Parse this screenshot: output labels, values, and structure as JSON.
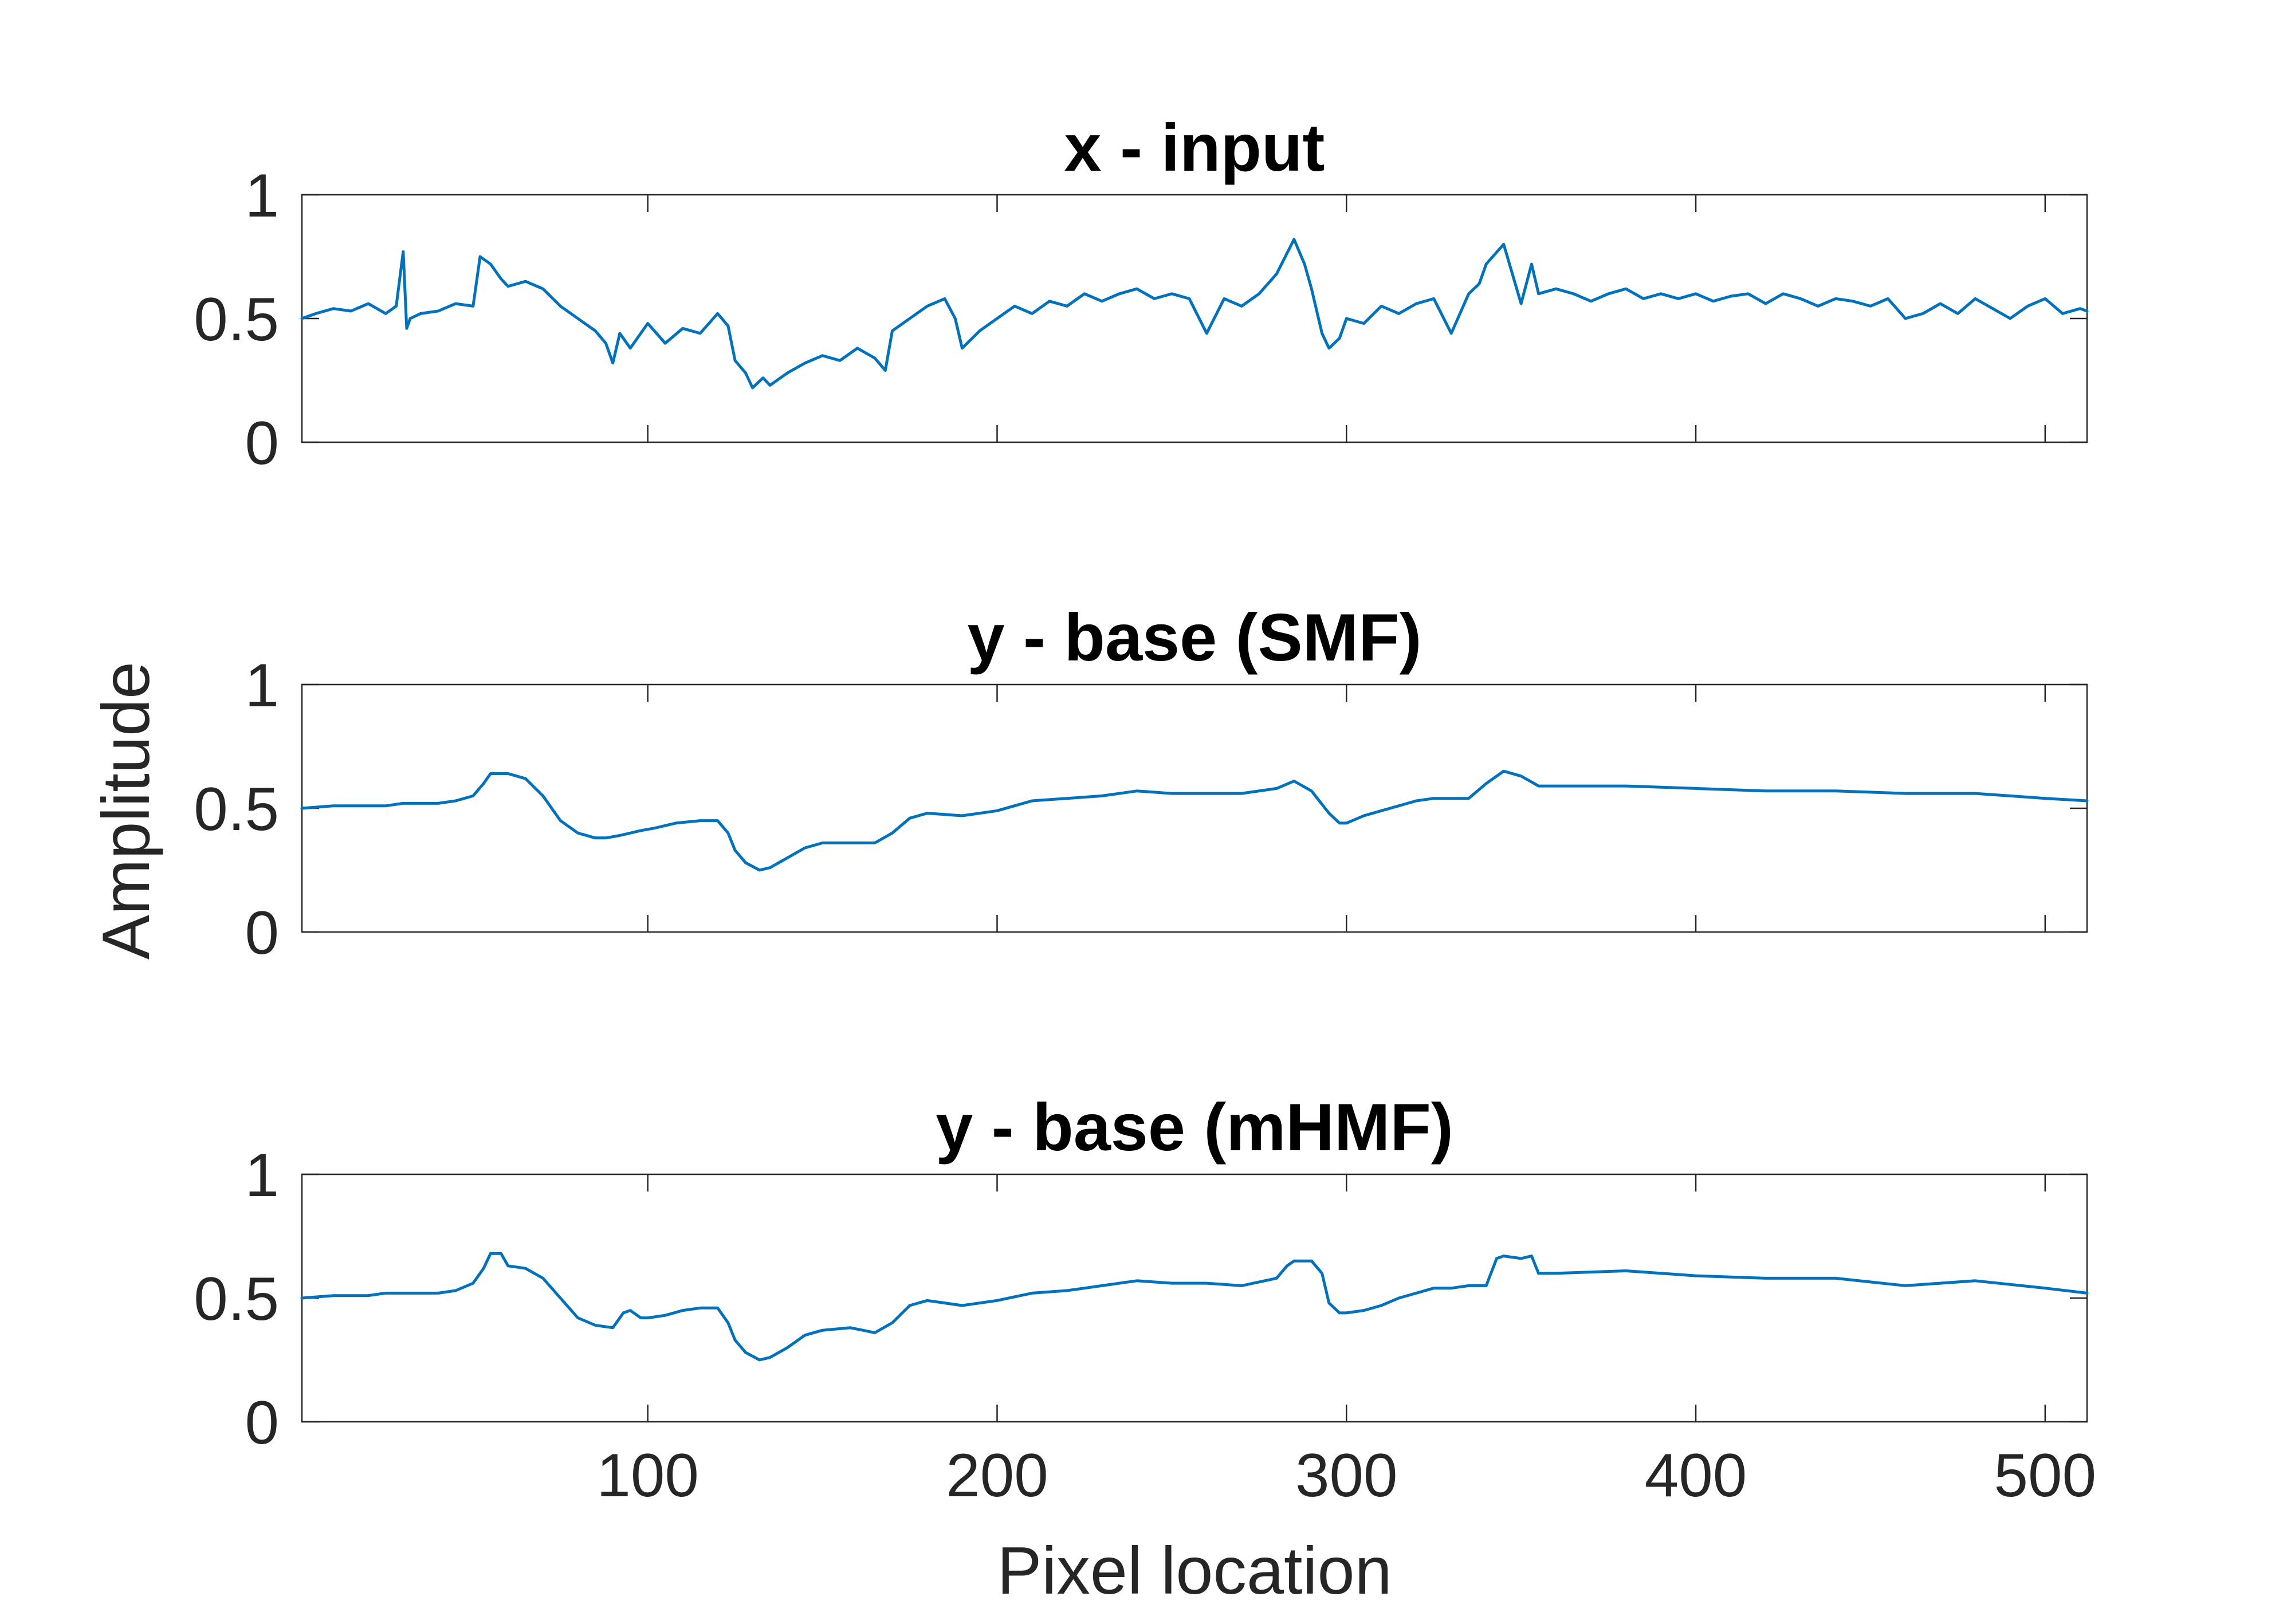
{
  "chart_data": [
    {
      "type": "line",
      "title": "x - input",
      "xlim": [
        1,
        512
      ],
      "ylim": [
        0,
        1
      ],
      "yticks": [
        "0",
        "0.5",
        "1"
      ],
      "xticks": [],
      "series": [
        {
          "color": "#0072BD",
          "x": [
            1,
            5,
            10,
            15,
            20,
            25,
            28,
            30,
            31,
            32,
            35,
            40,
            45,
            50,
            52,
            55,
            58,
            60,
            65,
            70,
            75,
            80,
            85,
            88,
            90,
            92,
            95,
            100,
            105,
            110,
            115,
            120,
            123,
            125,
            128,
            130,
            133,
            135,
            140,
            145,
            150,
            155,
            160,
            165,
            168,
            170,
            175,
            180,
            185,
            188,
            190,
            195,
            200,
            205,
            210,
            215,
            220,
            225,
            230,
            235,
            240,
            245,
            250,
            255,
            260,
            265,
            270,
            275,
            280,
            285,
            288,
            290,
            293,
            295,
            298,
            300,
            305,
            310,
            315,
            320,
            325,
            330,
            335,
            338,
            340,
            345,
            350,
            353,
            355,
            360,
            365,
            370,
            375,
            380,
            385,
            390,
            395,
            400,
            405,
            410,
            415,
            420,
            425,
            430,
            435,
            440,
            445,
            450,
            455,
            460,
            465,
            470,
            475,
            480,
            485,
            490,
            495,
            500,
            505,
            510,
            512
          ],
          "y": [
            0.5,
            0.52,
            0.54,
            0.53,
            0.56,
            0.52,
            0.55,
            0.77,
            0.46,
            0.5,
            0.52,
            0.53,
            0.56,
            0.55,
            0.75,
            0.72,
            0.66,
            0.63,
            0.65,
            0.62,
            0.55,
            0.5,
            0.45,
            0.4,
            0.32,
            0.44,
            0.38,
            0.48,
            0.4,
            0.46,
            0.44,
            0.52,
            0.47,
            0.33,
            0.28,
            0.22,
            0.26,
            0.23,
            0.28,
            0.32,
            0.35,
            0.33,
            0.38,
            0.34,
            0.29,
            0.45,
            0.5,
            0.55,
            0.58,
            0.5,
            0.38,
            0.45,
            0.5,
            0.55,
            0.52,
            0.57,
            0.55,
            0.6,
            0.57,
            0.6,
            0.62,
            0.58,
            0.6,
            0.58,
            0.44,
            0.58,
            0.55,
            0.6,
            0.68,
            0.82,
            0.72,
            0.62,
            0.44,
            0.38,
            0.42,
            0.5,
            0.48,
            0.55,
            0.52,
            0.56,
            0.58,
            0.44,
            0.6,
            0.64,
            0.72,
            0.8,
            0.56,
            0.72,
            0.6,
            0.62,
            0.6,
            0.57,
            0.6,
            0.62,
            0.58,
            0.6,
            0.58,
            0.6,
            0.57,
            0.59,
            0.6,
            0.56,
            0.6,
            0.58,
            0.55,
            0.58,
            0.57,
            0.55,
            0.58,
            0.5,
            0.52,
            0.56,
            0.52,
            0.58,
            0.54,
            0.5,
            0.55,
            0.58,
            0.52,
            0.54,
            0.53
          ]
        }
      ]
    },
    {
      "type": "line",
      "title": "y - base (SMF)",
      "xlim": [
        1,
        512
      ],
      "ylim": [
        0,
        1
      ],
      "yticks": [
        "0",
        "0.5",
        "1"
      ],
      "xticks": [],
      "series": [
        {
          "color": "#0072BD",
          "x": [
            1,
            10,
            20,
            25,
            30,
            40,
            45,
            50,
            53,
            55,
            60,
            65,
            70,
            75,
            80,
            85,
            88,
            92,
            98,
            102,
            108,
            115,
            120,
            123,
            125,
            128,
            132,
            135,
            140,
            145,
            150,
            158,
            165,
            170,
            175,
            180,
            190,
            200,
            210,
            220,
            230,
            240,
            250,
            260,
            270,
            280,
            285,
            290,
            295,
            298,
            300,
            305,
            310,
            315,
            320,
            325,
            330,
            335,
            340,
            345,
            350,
            355,
            360,
            380,
            400,
            420,
            440,
            460,
            480,
            500,
            512
          ],
          "y": [
            0.5,
            0.51,
            0.51,
            0.51,
            0.52,
            0.52,
            0.53,
            0.55,
            0.6,
            0.64,
            0.64,
            0.62,
            0.55,
            0.45,
            0.4,
            0.38,
            0.38,
            0.39,
            0.41,
            0.42,
            0.44,
            0.45,
            0.45,
            0.4,
            0.33,
            0.28,
            0.25,
            0.26,
            0.3,
            0.34,
            0.36,
            0.36,
            0.36,
            0.4,
            0.46,
            0.48,
            0.47,
            0.49,
            0.53,
            0.54,
            0.55,
            0.57,
            0.56,
            0.56,
            0.56,
            0.58,
            0.61,
            0.57,
            0.48,
            0.44,
            0.44,
            0.47,
            0.49,
            0.51,
            0.53,
            0.54,
            0.54,
            0.54,
            0.6,
            0.65,
            0.63,
            0.59,
            0.59,
            0.59,
            0.58,
            0.57,
            0.57,
            0.56,
            0.56,
            0.54,
            0.53
          ]
        }
      ]
    },
    {
      "type": "line",
      "title": "y - base (mHMF)",
      "xlim": [
        1,
        512
      ],
      "ylim": [
        0,
        1
      ],
      "yticks": [
        "0",
        "0.5",
        "1"
      ],
      "xticks": [
        "100",
        "200",
        "300",
        "400",
        "500"
      ],
      "xticks_values": [
        100,
        200,
        300,
        400,
        500
      ],
      "xlabel": "Pixel location",
      "series": [
        {
          "color": "#0072BD",
          "x": [
            1,
            10,
            20,
            25,
            30,
            40,
            45,
            50,
            53,
            55,
            58,
            60,
            65,
            70,
            75,
            80,
            85,
            90,
            93,
            95,
            98,
            100,
            105,
            110,
            115,
            120,
            123,
            125,
            128,
            132,
            135,
            140,
            145,
            150,
            158,
            165,
            170,
            175,
            180,
            190,
            200,
            210,
            220,
            230,
            240,
            250,
            260,
            270,
            280,
            283,
            285,
            290,
            293,
            295,
            298,
            300,
            305,
            310,
            315,
            320,
            325,
            330,
            335,
            340,
            343,
            345,
            350,
            353,
            355,
            360,
            380,
            400,
            420,
            440,
            460,
            480,
            500,
            512
          ],
          "y": [
            0.5,
            0.51,
            0.51,
            0.52,
            0.52,
            0.52,
            0.53,
            0.56,
            0.62,
            0.68,
            0.68,
            0.63,
            0.62,
            0.58,
            0.5,
            0.42,
            0.39,
            0.38,
            0.44,
            0.45,
            0.42,
            0.42,
            0.43,
            0.45,
            0.46,
            0.46,
            0.4,
            0.33,
            0.28,
            0.25,
            0.26,
            0.3,
            0.35,
            0.37,
            0.38,
            0.36,
            0.4,
            0.47,
            0.49,
            0.47,
            0.49,
            0.52,
            0.53,
            0.55,
            0.57,
            0.56,
            0.56,
            0.55,
            0.58,
            0.63,
            0.65,
            0.65,
            0.6,
            0.48,
            0.44,
            0.44,
            0.45,
            0.47,
            0.5,
            0.52,
            0.54,
            0.54,
            0.55,
            0.55,
            0.66,
            0.67,
            0.66,
            0.67,
            0.6,
            0.6,
            0.61,
            0.59,
            0.58,
            0.58,
            0.55,
            0.57,
            0.54,
            0.52
          ]
        }
      ]
    }
  ],
  "shared_ylabel": "Amplitude"
}
